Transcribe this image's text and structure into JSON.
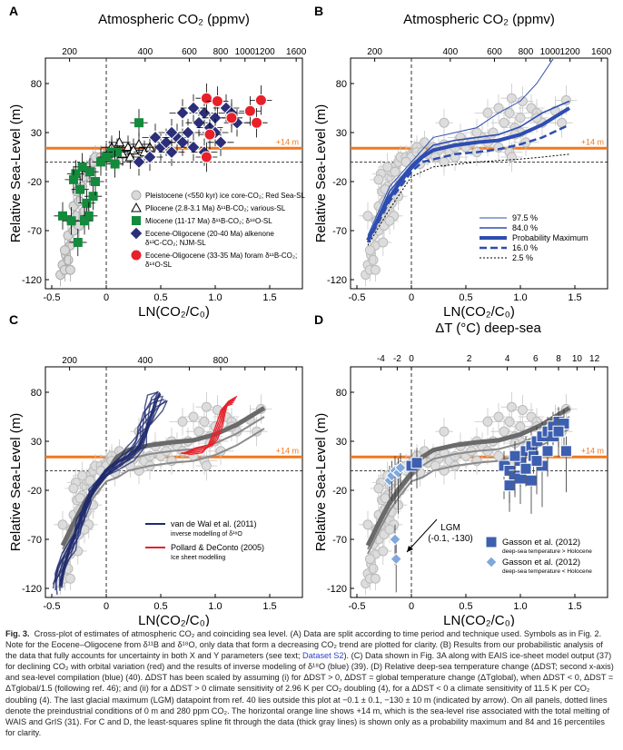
{
  "figure_label": "Fig. 3.",
  "caption": {
    "part1": "Cross-plot of estimates of atmospheric CO₂ and coinciding sea level. (A) Data are split according to time period and technique used. Symbols as in Fig. 2. Note for the Eocene–Oligocene from δ¹¹B and δ¹⁸O, only data that form a decreasing CO₂ trend are plotted for clarity. (B) Results from our probabilistic analysis of the data that fully accounts for uncertainty in both X and Y parameters (see text; ",
    "link": "Dataset S2",
    "part2": "). (C) Data shown in Fig. 3A along with EAIS ice-sheet model output (37) for declining CO₂ with orbital variation (red) and the results of inverse modeling of δ¹⁸O (blue) (39). (D) Relative deep-sea temperature change (ΔDST; second x-axis) and sea-level compilation (blue) (40). ΔDST has been scaled by assuming (i) for ΔDST > 0, ΔDST = global temperature change (ΔTglobal), when ΔDST < 0, ΔDST = ΔTglobal/1.5 (following ref. 46); and (ii) for a ΔDST > 0 climate sensitivity of 2.96 K per CO₂ doubling (4), for a ΔDST < 0 a climate sensitivity of 11.5 K per CO₂ doubling (4). The last glacial maximum (LGM) datapoint from ref. 40 lies outside this plot at −0.1 ± 0.1, −130 ± 10 m (indicated by arrow). On all panels, dotted lines denote the preindustrial conditions of 0 m and 280 ppm CO₂. The horizontal orange line shows +14 m, which is the sea-level rise associated with the total melting of WAIS and GrIS (31). For C and D, the least-squares spline fit through the data (thick gray lines) is shown only as a probability maximum and 84 and 16 percentiles for clarity."
  },
  "colors": {
    "orange": "#f07820",
    "navy": "#2b2f7a",
    "green": "#138a3c",
    "red": "#e8202a",
    "blue_model": "#1f2b6e",
    "red_model": "#e8202a",
    "gasson_dark": "#3d5fb0",
    "gasson_light": "#7fa8dc",
    "gray": "#bdbdbd",
    "band": "#2e4db0"
  },
  "common": {
    "ylabel": "Relative Sea-Level (m)",
    "xlabel": "LN(CO₂/C₀)",
    "xticks": [
      -0.5,
      0,
      0.5,
      1.0,
      1.5
    ],
    "xtick_labels": [
      "-0.5",
      "0",
      "0.5",
      "1.0",
      "1.5"
    ],
    "yticks": [
      80,
      30,
      -20,
      -70,
      -120
    ],
    "ytick_labels": [
      "80",
      "30",
      "-20",
      "-70",
      "-120"
    ],
    "xlim": [
      -0.5,
      1.65
    ],
    "ylim": [
      -125,
      105
    ],
    "co2_title": "Atmospheric CO₂ (ppmv)",
    "co2_ticks": [
      200,
      400,
      600,
      800,
      1000,
      1200,
      1600
    ],
    "co2_tick_labels": [
      "200",
      "400",
      "600",
      "800",
      "1000",
      "1200",
      "1600"
    ],
    "c_co2_tick_labels": [
      "200",
      "400",
      "800"
    ],
    "orange_label": "+14 m",
    "orange_level": 14
  },
  "chart_data": [
    {
      "panel": "A",
      "type": "scatter",
      "series": [
        {
          "name": "Pleistocene (<550 kyr) ice core-CO₂; Red Sea-SL",
          "marker": "gray-circle",
          "err": [
            0.03,
            12
          ],
          "points": [
            [
              -0.42,
              -115
            ],
            [
              -0.4,
              -105
            ],
            [
              -0.38,
              -110
            ],
            [
              -0.37,
              -95
            ],
            [
              -0.35,
              -100
            ],
            [
              -0.33,
              -85
            ],
            [
              -0.35,
              -75
            ],
            [
              -0.3,
              -70
            ],
            [
              -0.32,
              -60
            ],
            [
              -0.28,
              -55
            ],
            [
              -0.3,
              -45
            ],
            [
              -0.25,
              -40
            ],
            [
              -0.27,
              -30
            ],
            [
              -0.22,
              -25
            ],
            [
              -0.2,
              -15
            ],
            [
              -0.18,
              -10
            ],
            [
              -0.15,
              -5
            ],
            [
              -0.12,
              0
            ],
            [
              -0.1,
              5
            ],
            [
              -0.05,
              5
            ],
            [
              0,
              8
            ],
            [
              0.03,
              10
            ],
            [
              0.05,
              12
            ],
            [
              -0.38,
              -90
            ],
            [
              -0.33,
              -110
            ],
            [
              -0.25,
              -65
            ],
            [
              -0.2,
              -50
            ]
          ]
        },
        {
          "name": "Pliocene (2.8-3.1 Ma) δ¹¹B-CO₂; various-SL",
          "marker": "triangle-diamond",
          "err": [
            0.1,
            12
          ],
          "points": [
            [
              0.05,
              15
            ],
            [
              0.1,
              10
            ],
            [
              0.15,
              8
            ],
            [
              0.2,
              15
            ],
            [
              0.25,
              12
            ],
            [
              0.3,
              18
            ],
            [
              0.35,
              10
            ],
            [
              0.4,
              15
            ],
            [
              0.12,
              20
            ],
            [
              0.22,
              5
            ]
          ]
        },
        {
          "name": "Miocene (11-17 Ma) δ¹¹B-CO₂; δ¹⁸O-SL",
          "marker": "green-square",
          "err": [
            0.08,
            14
          ],
          "points": [
            [
              -0.4,
              -55
            ],
            [
              -0.32,
              -60
            ],
            [
              -0.28,
              -12
            ],
            [
              -0.22,
              -5
            ],
            [
              -0.24,
              -28
            ],
            [
              -0.18,
              -42
            ],
            [
              -0.16,
              -55
            ],
            [
              -0.2,
              -60
            ],
            [
              -0.26,
              -82
            ],
            [
              -0.12,
              -35
            ],
            [
              -0.1,
              -20
            ],
            [
              0,
              5
            ],
            [
              0.05,
              10
            ],
            [
              0.1,
              10
            ],
            [
              -0.05,
              0
            ],
            [
              0.3,
              40
            ],
            [
              0.08,
              -2
            ],
            [
              -0.3,
              -18
            ],
            [
              -0.15,
              -10
            ]
          ]
        },
        {
          "name": "Eocene-Oligocene (20-40 Ma) alkenone δ¹³C-CO₂; NJM-SL",
          "marker": "navy-diamond",
          "err": [
            0.12,
            14
          ],
          "points": [
            [
              0.3,
              0
            ],
            [
              0.4,
              5
            ],
            [
              0.5,
              15
            ],
            [
              0.55,
              20
            ],
            [
              0.6,
              10
            ],
            [
              0.65,
              25
            ],
            [
              0.7,
              20
            ],
            [
              0.75,
              30
            ],
            [
              0.8,
              15
            ],
            [
              0.85,
              40
            ],
            [
              0.9,
              50
            ],
            [
              0.95,
              35
            ],
            [
              1.0,
              45
            ],
            [
              1.05,
              20
            ],
            [
              1.1,
              55
            ],
            [
              1.15,
              50
            ],
            [
              1.2,
              40
            ],
            [
              0.7,
              50
            ],
            [
              0.6,
              30
            ],
            [
              0.8,
              55
            ],
            [
              0.45,
              25
            ],
            [
              0.9,
              10
            ],
            [
              1.0,
              30
            ]
          ]
        },
        {
          "name": "Eocene-Oligocene (33-35 Ma) foram δ¹¹B-CO₂; δ¹⁸O-SL",
          "marker": "red-circle",
          "err": [
            0.1,
            15
          ],
          "points": [
            [
              0.92,
              65
            ],
            [
              1.02,
              62
            ],
            [
              1.32,
              52
            ],
            [
              1.42,
              63
            ],
            [
              1.38,
              40
            ],
            [
              0.95,
              28
            ],
            [
              0.92,
              5
            ],
            [
              1.15,
              45
            ]
          ]
        }
      ]
    },
    {
      "panel": "B",
      "type": "line",
      "series": [
        {
          "name": "97.5 %",
          "style": "thin",
          "points": [
            [
              -0.4,
              -75
            ],
            [
              -0.2,
              -25
            ],
            [
              0,
              0
            ],
            [
              0.2,
              25
            ],
            [
              0.4,
              30
            ],
            [
              0.6,
              35
            ],
            [
              0.8,
              50
            ],
            [
              1.0,
              62
            ],
            [
              1.15,
              80
            ],
            [
              1.3,
              105
            ]
          ]
        },
        {
          "name": "84.0 %",
          "style": "medium",
          "points": [
            [
              -0.4,
              -78
            ],
            [
              -0.2,
              -30
            ],
            [
              0,
              -3
            ],
            [
              0.2,
              17
            ],
            [
              0.4,
              22
            ],
            [
              0.6,
              25
            ],
            [
              0.8,
              28
            ],
            [
              1.0,
              36
            ],
            [
              1.2,
              50
            ],
            [
              1.45,
              62
            ]
          ]
        },
        {
          "name": "Probability Maximum",
          "style": "thick",
          "points": [
            [
              -0.4,
              -80
            ],
            [
              -0.3,
              -57
            ],
            [
              -0.2,
              -36
            ],
            [
              -0.1,
              -20
            ],
            [
              0,
              -6
            ],
            [
              0.1,
              5
            ],
            [
              0.2,
              12
            ],
            [
              0.4,
              17
            ],
            [
              0.6,
              20
            ],
            [
              0.8,
              22
            ],
            [
              1.0,
              28
            ],
            [
              1.2,
              38
            ],
            [
              1.45,
              55
            ]
          ]
        },
        {
          "name": "16.0 %",
          "style": "dashed",
          "points": [
            [
              -0.4,
              -82
            ],
            [
              -0.2,
              -40
            ],
            [
              0,
              -10
            ],
            [
              0.1,
              0
            ],
            [
              0.4,
              8
            ],
            [
              0.6,
              10
            ],
            [
              0.8,
              13
            ],
            [
              1.0,
              18
            ],
            [
              1.2,
              25
            ],
            [
              1.45,
              38
            ]
          ]
        },
        {
          "name": "2.5 %",
          "style": "dotted",
          "points": [
            [
              -0.4,
              -85
            ],
            [
              -0.2,
              -48
            ],
            [
              0,
              -15
            ],
            [
              0.2,
              -5
            ],
            [
              0.6,
              0
            ],
            [
              1.0,
              3
            ],
            [
              1.2,
              5
            ],
            [
              1.45,
              8
            ]
          ]
        }
      ]
    },
    {
      "panel": "C",
      "type": "line",
      "legend": [
        {
          "name": "van de Wal et al. (2011)",
          "sub": "inverse modelling of δ¹⁸O"
        },
        {
          "name": "Pollard & DeConto (2005)",
          "sub": "Ice sheet modelling"
        }
      ],
      "van_de_wal": [
        [
          -0.43,
          -118
        ],
        [
          -0.4,
          -100
        ],
        [
          -0.35,
          -85
        ],
        [
          -0.3,
          -70
        ],
        [
          -0.25,
          -55
        ],
        [
          -0.2,
          -40
        ],
        [
          -0.15,
          -28
        ],
        [
          -0.1,
          -15
        ],
        [
          0,
          0
        ],
        [
          0.1,
          8
        ],
        [
          0.2,
          15
        ],
        [
          0.3,
          25
        ],
        [
          0.35,
          40
        ],
        [
          0.4,
          55
        ],
        [
          0.45,
          70
        ],
        [
          0.5,
          78
        ]
      ],
      "pollard": [
        [
          0.7,
          18
        ],
        [
          0.8,
          20
        ],
        [
          0.9,
          22
        ],
        [
          0.95,
          25
        ],
        [
          1.0,
          35
        ],
        [
          1.05,
          50
        ],
        [
          1.07,
          60
        ],
        [
          1.1,
          68
        ],
        [
          1.18,
          72
        ]
      ]
    },
    {
      "panel": "D",
      "type": "scatter",
      "top_title": "ΔT (°C) deep-sea",
      "top_ticks": [
        -4,
        -2,
        0,
        2,
        4,
        6,
        8,
        10,
        12
      ],
      "top_tick_labels": [
        "-4",
        "-2",
        "0",
        "2",
        "4",
        "6",
        "8",
        "10",
        "12"
      ],
      "lgm_label": "LGM",
      "lgm_coords": "(-0.1, -130)",
      "series": [
        {
          "name": "Gasson et al. (2012)",
          "sub": "deep-sea temperature > Holocene",
          "marker": "square",
          "points": [
            [
              0,
              5
            ],
            [
              0.05,
              8
            ],
            [
              0.85,
              5
            ],
            [
              0.9,
              0
            ],
            [
              0.95,
              -5
            ],
            [
              1.0,
              10
            ],
            [
              1.05,
              20
            ],
            [
              1.1,
              25
            ],
            [
              1.12,
              15
            ],
            [
              1.15,
              30
            ],
            [
              1.2,
              35
            ],
            [
              1.25,
              40
            ],
            [
              1.3,
              45
            ],
            [
              1.35,
              50
            ],
            [
              1.4,
              48
            ],
            [
              1.42,
              20
            ],
            [
              0.9,
              -15
            ],
            [
              1.0,
              -8
            ],
            [
              1.1,
              -10
            ],
            [
              1.2,
              5
            ],
            [
              1.3,
              35
            ],
            [
              1.25,
              20
            ],
            [
              1.15,
              10
            ],
            [
              0.95,
              15
            ],
            [
              1.05,
              2
            ],
            [
              1.35,
              40
            ]
          ]
        },
        {
          "name": "Gasson et al. (2012)",
          "sub": "deep-sea temperature < Holocene",
          "marker": "diamond",
          "points": [
            [
              -0.2,
              -10
            ],
            [
              -0.18,
              -5
            ],
            [
              -0.15,
              0
            ],
            [
              -0.12,
              -2
            ],
            [
              -0.1,
              3
            ],
            [
              -0.15,
              -70
            ],
            [
              -0.14,
              -90
            ]
          ]
        }
      ]
    }
  ]
}
